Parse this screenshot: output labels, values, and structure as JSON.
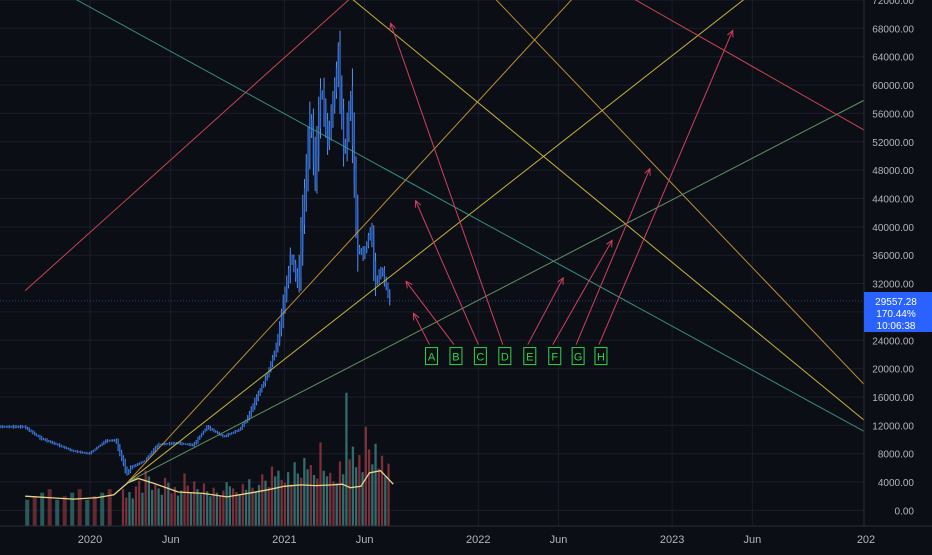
{
  "chart_data": {
    "type": "candlestick",
    "title": "",
    "xlabel": "",
    "ylabel": "",
    "ylim": [
      -2200,
      72000
    ],
    "y_ticks": [
      "72000.00",
      "68000.00",
      "64000.00",
      "60000.00",
      "56000.00",
      "52000.00",
      "48000.00",
      "44000.00",
      "40000.00",
      "36000.00",
      "32000.00",
      "28000.00",
      "24000.00",
      "20000.00",
      "16000.00",
      "12000.00",
      "8000.00",
      "4000.00",
      "0.00"
    ],
    "x_ticks": [
      {
        "date": "2020-01-01",
        "label": "2020"
      },
      {
        "date": "2020-06-01",
        "label": "Jun"
      },
      {
        "date": "2021-01-01",
        "label": "2021"
      },
      {
        "date": "2021-06-01",
        "label": "Jun"
      },
      {
        "date": "2022-01-01",
        "label": "2022"
      },
      {
        "date": "2022-06-01",
        "label": "Jun"
      },
      {
        "date": "2023-01-01",
        "label": "2023"
      },
      {
        "date": "2023-06-01",
        "label": "Jun"
      },
      {
        "date": "2024-01-01",
        "label": "202"
      }
    ],
    "price_path": [
      [
        "2019-09-01",
        11800
      ],
      [
        "2019-10-01",
        10200
      ],
      [
        "2019-11-01",
        9300
      ],
      [
        "2019-12-01",
        8400
      ],
      [
        "2020-01-01",
        8000
      ],
      [
        "2020-02-01",
        9800
      ],
      [
        "2020-02-20",
        9900
      ],
      [
        "2020-03-12",
        5200
      ],
      [
        "2020-03-20",
        6100
      ],
      [
        "2020-04-15",
        7000
      ],
      [
        "2020-05-10",
        9300
      ],
      [
        "2020-06-15",
        9500
      ],
      [
        "2020-07-15",
        9200
      ],
      [
        "2020-08-10",
        11800
      ],
      [
        "2020-09-10",
        10400
      ],
      [
        "2020-10-10",
        11400
      ],
      [
        "2020-10-25",
        13000
      ],
      [
        "2020-11-15",
        16500
      ],
      [
        "2020-12-01",
        19000
      ],
      [
        "2020-12-20",
        23500
      ],
      [
        "2021-01-05",
        31000
      ],
      [
        "2021-01-15",
        36000
      ],
      [
        "2021-01-28",
        32000
      ],
      [
        "2021-02-10",
        45000
      ],
      [
        "2021-02-21",
        56000
      ],
      [
        "2021-03-01",
        47000
      ],
      [
        "2021-03-13",
        60000
      ],
      [
        "2021-03-25",
        52000
      ],
      [
        "2021-04-05",
        58000
      ],
      [
        "2021-04-14",
        64000
      ],
      [
        "2021-04-25",
        50000
      ],
      [
        "2021-05-08",
        58500
      ],
      [
        "2021-05-13",
        49000
      ],
      [
        "2021-05-20",
        37000
      ],
      [
        "2021-06-01",
        36000
      ],
      [
        "2021-06-15",
        40000
      ],
      [
        "2021-06-22",
        32000
      ],
      [
        "2021-07-05",
        34000
      ],
      [
        "2021-07-20",
        29557
      ]
    ],
    "volume": [
      3000,
      1800,
      2600,
      1700,
      3400,
      4200,
      2500,
      5600,
      4800,
      2900,
      3600,
      3100,
      2200,
      4600,
      3900,
      2400,
      3300,
      2100,
      2800,
      5200,
      3500,
      2600,
      4100,
      3000,
      2300,
      3800,
      2700,
      2000,
      3200,
      2500,
      2100,
      2800,
      4000,
      3400,
      3100,
      2600,
      2300,
      3700,
      2900,
      4400,
      3200,
      2700,
      3600,
      5100,
      4200,
      3300,
      6200,
      4800,
      5600,
      4300,
      3900,
      5400,
      3700,
      6800,
      5200,
      4600,
      7400,
      5800,
      6400,
      5000,
      4500,
      9600,
      5600,
      4800,
      5300,
      4100,
      3800,
      6900,
      5100,
      16600,
      7200,
      9000,
      6100,
      7800,
      5400,
      11800,
      8600,
      6500,
      9400,
      5900,
      7700,
      4800,
      6600
    ],
    "volume_ma": [
      [
        "2019-09-01",
        2000
      ],
      [
        "2019-10-15",
        1800
      ],
      [
        "2019-12-01",
        1600
      ],
      [
        "2020-01-15",
        1800
      ],
      [
        "2020-02-15",
        2200
      ],
      [
        "2020-03-12",
        3900
      ],
      [
        "2020-04-01",
        4500
      ],
      [
        "2020-05-01",
        3800
      ],
      [
        "2020-06-15",
        2600
      ],
      [
        "2020-08-01",
        2400
      ],
      [
        "2020-09-15",
        1900
      ],
      [
        "2020-11-01",
        2500
      ],
      [
        "2020-12-01",
        2900
      ],
      [
        "2021-01-01",
        3400
      ],
      [
        "2021-02-01",
        3600
      ],
      [
        "2021-03-01",
        3500
      ],
      [
        "2021-04-01",
        3600
      ],
      [
        "2021-04-20",
        3700
      ],
      [
        "2021-05-05",
        3200
      ],
      [
        "2021-05-25",
        3400
      ],
      [
        "2021-06-10",
        5300
      ],
      [
        "2021-07-01",
        5600
      ],
      [
        "2021-07-25",
        3700
      ]
    ],
    "trendlines": [
      {
        "color": "#d84a58",
        "x1": "2019-09-01",
        "y1": 31000,
        "x2": "2021-07-15",
        "y2": 77000
      },
      {
        "color": "#d8c43e",
        "x1": "2021-01-01",
        "y1": 80000,
        "x2": "2024-01-01",
        "y2": 12500
      },
      {
        "color": "#d8c43e",
        "x1": "2020-03-12",
        "y1": 4000,
        "x2": "2023-06-01",
        "y2": 73000
      },
      {
        "color": "#d09a38",
        "x1": "2020-03-12",
        "y1": 4000,
        "x2": "2022-08-01",
        "y2": 75000
      },
      {
        "color": "#d09a38",
        "x1": "2021-12-15",
        "y1": 76000,
        "x2": "2024-01-01",
        "y2": 17500
      },
      {
        "color": "#6a9e6a",
        "x1": "2020-03-12",
        "y1": 4000,
        "x2": "2024-01-01",
        "y2": 58000
      },
      {
        "color": "#3a9a8a",
        "x1": "2019-09-01",
        "y1": 76000,
        "x2": "2024-01-01",
        "y2": 11000
      },
      {
        "color": "#d84a58",
        "x1": "2022-10-01",
        "y1": 73000,
        "x2": "2024-01-01",
        "y2": 53500
      }
    ],
    "annotations": [
      {
        "label": "A",
        "box": [
          "2021-10-05",
          21700
        ],
        "tip": [
          "2021-09-01",
          27800
        ]
      },
      {
        "label": "B",
        "box": [
          "2021-11-20",
          21700
        ],
        "tip": [
          "2021-08-18",
          32300
        ]
      },
      {
        "label": "C",
        "box": [
          "2022-01-05",
          21700
        ],
        "tip": [
          "2021-09-05",
          43700
        ]
      },
      {
        "label": "D",
        "box": [
          "2022-02-20",
          21700
        ],
        "tip": [
          "2021-07-20",
          68700
        ]
      },
      {
        "label": "E",
        "box": [
          "2022-04-08",
          21700
        ],
        "tip": [
          "2022-06-10",
          32800
        ]
      },
      {
        "label": "F",
        "box": [
          "2022-05-25",
          21700
        ],
        "tip": [
          "2022-09-10",
          38100
        ]
      },
      {
        "label": "G",
        "box": [
          "2022-07-08",
          21700
        ],
        "tip": [
          "2022-11-20",
          48200
        ]
      },
      {
        "label": "H",
        "box": [
          "2022-08-20",
          21700
        ],
        "tip": [
          "2023-04-25",
          67700
        ]
      }
    ],
    "last_price_label": {
      "price": "29557.28",
      "change": "170.44%",
      "countdown": "10:06:38",
      "value": 29557
    }
  },
  "colors": {
    "background": "#0c0e15",
    "grid": "#1a1d2b",
    "candle": "#2f6fd6",
    "candle_wick": "#5a90f0",
    "volume_up": "#3f8c8a",
    "volume_down": "#a03b45",
    "volume_ma": "#e8d48a",
    "annotation_arrow": "#d04060",
    "annotation_box": "#2ad54a",
    "axis_text": "#b2b5be",
    "price_badge": "#2962ff",
    "price_line": "#2f5fd6"
  }
}
